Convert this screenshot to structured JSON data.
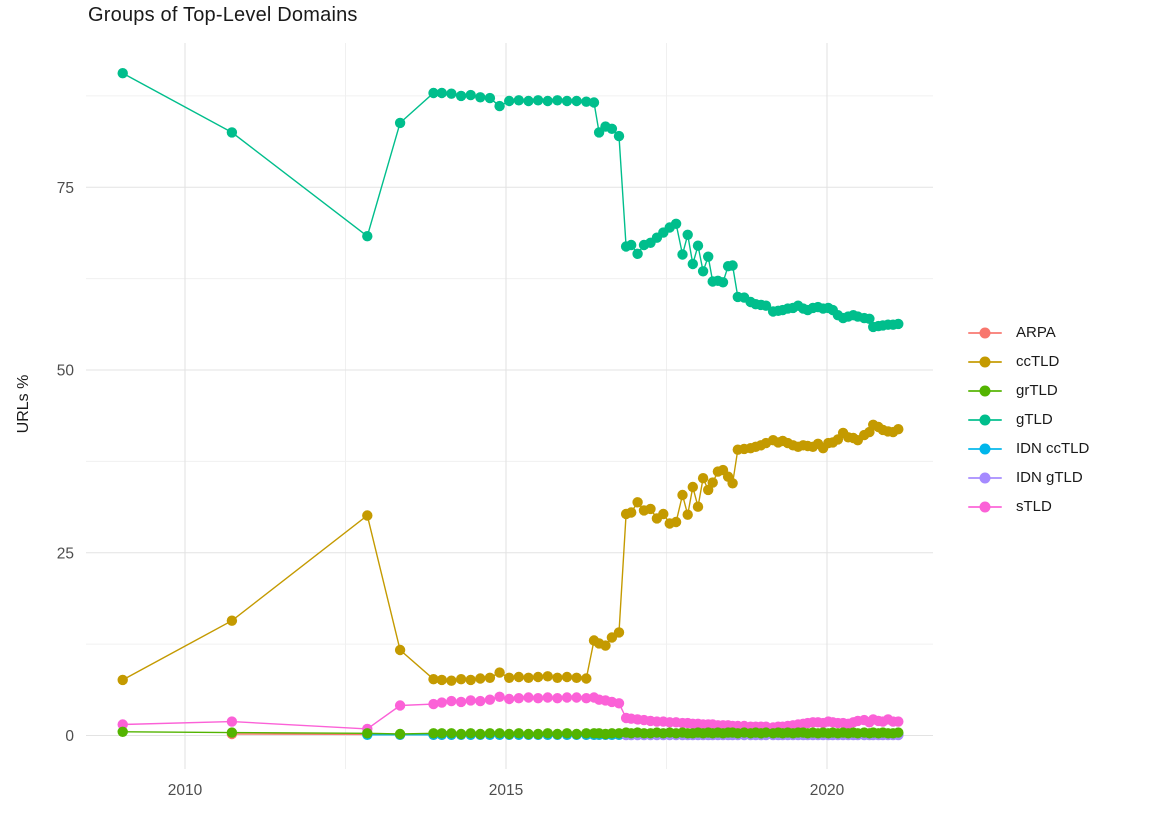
{
  "chart_data": {
    "type": "line",
    "title": "Groups of Top-Level Domains",
    "xlabel": "",
    "ylabel": "URLs %",
    "grid": true,
    "legend_position": "right-center",
    "axis_text_color": "#4d4d4d",
    "major_grid_color": "#e3e3e3",
    "minor_grid_color": "#f0f0f0",
    "x_ticks": [
      2010,
      2015,
      2020
    ],
    "x_tick_labels": [
      "2010",
      "2015",
      "2020"
    ],
    "x_minor_ticks": [
      2012.5,
      2017.5
    ],
    "y_ticks": [
      0,
      25,
      50,
      75
    ],
    "y_tick_labels": [
      "0",
      "25",
      "50",
      "75"
    ],
    "y_minor_ticks": [
      12.5,
      37.5,
      62.5,
      87.5
    ],
    "xlim": [
      2008.45,
      2021.8
    ],
    "ylim": [
      -4.6,
      95.1
    ],
    "x": [
      2009.03,
      2010.73,
      2012.84,
      2013.35,
      2013.87,
      2014.0,
      2014.15,
      2014.3,
      2014.45,
      2014.6,
      2014.75,
      2014.9,
      2015.05,
      2015.2,
      2015.35,
      2015.5,
      2015.65,
      2015.8,
      2015.95,
      2016.1,
      2016.25,
      2016.37,
      2016.45,
      2016.55,
      2016.65,
      2016.76,
      2016.87,
      2016.95,
      2017.05,
      2017.15,
      2017.25,
      2017.35,
      2017.45,
      2017.55,
      2017.65,
      2017.75,
      2017.83,
      2017.91,
      2017.99,
      2018.07,
      2018.15,
      2018.22,
      2018.3,
      2018.38,
      2018.46,
      2018.53,
      2018.61,
      2018.71,
      2018.81,
      2018.89,
      2018.97,
      2019.05,
      2019.16,
      2019.24,
      2019.31,
      2019.39,
      2019.47,
      2019.55,
      2019.63,
      2019.7,
      2019.78,
      2019.86,
      2019.94,
      2020.02,
      2020.09,
      2020.17,
      2020.25,
      2020.33,
      2020.41,
      2020.48,
      2020.58,
      2020.66,
      2020.72,
      2020.8,
      2020.87,
      2020.95,
      2021.03,
      2021.11
    ],
    "series": [
      {
        "name": "ARPA",
        "color": "#F8766D",
        "values": [
          null,
          0.2,
          0.15,
          0.1,
          0.1,
          0.1,
          0.1,
          0.1,
          0.1,
          0.1,
          0.1,
          0.1,
          0.1,
          0.1,
          0.1,
          0.1,
          0.1,
          0.1,
          0.1,
          0.1,
          0.1,
          0.1,
          0.1,
          0.1,
          0.1,
          0.1,
          0.1,
          0.1,
          0.1,
          0.1,
          0.1,
          0.1,
          0.1,
          0.1,
          0.1,
          0.1,
          0.1,
          0.1,
          0.1,
          0.1,
          0.1,
          0.1,
          0.1,
          0.1,
          0.1,
          0.1,
          0.1,
          0.1,
          0.1,
          0.1,
          0.1,
          0.1,
          0.1,
          0.1,
          0.1,
          0.1,
          0.1,
          0.1,
          0.1,
          0.1,
          0.1,
          0.1,
          0.1,
          0.1,
          0.1,
          0.1,
          0.1,
          0.1,
          0.1,
          0.1,
          0.1,
          0.1,
          0.1,
          0.1,
          0.1,
          0.1,
          0.1,
          0.1
        ]
      },
      {
        "name": "ccTLD",
        "color": "#C49A00",
        "values": [
          7.6,
          15.7,
          30.1,
          11.7,
          7.7,
          7.6,
          7.5,
          7.7,
          7.6,
          7.8,
          7.9,
          8.6,
          7.9,
          8.0,
          7.9,
          8.0,
          8.1,
          7.9,
          8.0,
          7.9,
          7.8,
          13.0,
          12.6,
          12.3,
          13.4,
          14.1,
          30.3,
          30.5,
          31.9,
          30.8,
          31.0,
          29.7,
          30.3,
          29.0,
          29.2,
          32.9,
          30.2,
          34.0,
          31.3,
          35.2,
          33.6,
          34.6,
          36.1,
          36.3,
          35.4,
          34.5,
          39.1,
          39.2,
          39.3,
          39.5,
          39.7,
          40.0,
          40.4,
          40.1,
          40.3,
          40.0,
          39.7,
          39.5,
          39.7,
          39.6,
          39.5,
          39.9,
          39.3,
          40.0,
          40.1,
          40.5,
          41.4,
          40.8,
          40.7,
          40.4,
          41.1,
          41.5,
          42.5,
          42.2,
          41.8,
          41.6,
          41.5,
          41.9
        ]
      },
      {
        "name": "grTLD",
        "color": "#53B400",
        "values": [
          0.5,
          0.4,
          0.3,
          0.2,
          0.3,
          0.3,
          0.3,
          0.2,
          0.3,
          0.2,
          0.3,
          0.3,
          0.2,
          0.3,
          0.2,
          0.2,
          0.3,
          0.2,
          0.3,
          0.2,
          0.3,
          0.3,
          0.3,
          0.2,
          0.3,
          0.3,
          0.4,
          0.3,
          0.4,
          0.3,
          0.3,
          0.4,
          0.3,
          0.4,
          0.3,
          0.4,
          0.3,
          0.3,
          0.4,
          0.3,
          0.4,
          0.3,
          0.4,
          0.3,
          0.4,
          0.4,
          0.3,
          0.4,
          0.3,
          0.4,
          0.3,
          0.4,
          0.3,
          0.4,
          0.3,
          0.4,
          0.3,
          0.4,
          0.4,
          0.3,
          0.4,
          0.3,
          0.4,
          0.3,
          0.4,
          0.3,
          0.4,
          0.3,
          0.4,
          0.3,
          0.4,
          0.3,
          0.4,
          0.3,
          0.4,
          0.3,
          0.3,
          0.4
        ]
      },
      {
        "name": "gTLD",
        "color": "#00BE8C",
        "values": [
          90.6,
          82.5,
          68.3,
          83.8,
          87.9,
          87.9,
          87.8,
          87.5,
          87.6,
          87.3,
          87.2,
          86.1,
          86.8,
          86.9,
          86.8,
          86.9,
          86.8,
          86.9,
          86.8,
          86.8,
          86.7,
          86.6,
          82.5,
          83.3,
          83.0,
          82.0,
          66.9,
          67.1,
          65.9,
          67.1,
          67.4,
          68.1,
          68.8,
          69.5,
          70.0,
          65.8,
          68.5,
          64.5,
          67.0,
          63.5,
          65.5,
          62.1,
          62.2,
          62.0,
          64.2,
          64.3,
          60.0,
          59.9,
          59.3,
          59.0,
          58.9,
          58.8,
          58.0,
          58.1,
          58.2,
          58.4,
          58.5,
          58.8,
          58.4,
          58.2,
          58.5,
          58.6,
          58.4,
          58.5,
          58.2,
          57.5,
          57.1,
          57.3,
          57.5,
          57.3,
          57.1,
          57.0,
          55.9,
          56.0,
          56.1,
          56.2,
          56.2,
          56.3
        ]
      },
      {
        "name": "IDN ccTLD",
        "color": "#00B6EB",
        "values": [
          null,
          null,
          0.1,
          0.1,
          0.1,
          0.1,
          0.1,
          0.1,
          0.1,
          0.1,
          0.1,
          0.1,
          0.1,
          0.1,
          0.1,
          0.1,
          0.1,
          0.1,
          0.1,
          0.1,
          0.1,
          0.1,
          0.1,
          0.1,
          0.1,
          0.1,
          0.2,
          0.2,
          0.2,
          0.2,
          0.2,
          0.2,
          0.2,
          0.2,
          0.2,
          0.2,
          0.2,
          0.2,
          0.2,
          0.2,
          0.2,
          0.2,
          0.2,
          0.2,
          0.2,
          0.2,
          0.2,
          0.2,
          0.2,
          0.2,
          0.2,
          0.2,
          0.2,
          0.2,
          0.2,
          0.2,
          0.2,
          0.2,
          0.2,
          0.2,
          0.2,
          0.2,
          0.2,
          0.2,
          0.2,
          0.2,
          0.2,
          0.2,
          0.2,
          0.2,
          0.2,
          0.2,
          0.2,
          0.2,
          0.2,
          0.2,
          0.2,
          0.2
        ]
      },
      {
        "name": "IDN gTLD",
        "color": "#A58AFF",
        "values": [
          null,
          null,
          null,
          null,
          null,
          null,
          null,
          null,
          null,
          null,
          null,
          null,
          null,
          null,
          null,
          null,
          null,
          null,
          null,
          null,
          null,
          null,
          null,
          null,
          null,
          null,
          0.05,
          0.05,
          0.05,
          0.05,
          0.05,
          0.05,
          0.05,
          0.05,
          0.05,
          0.05,
          0.05,
          0.05,
          0.05,
          0.05,
          0.05,
          0.05,
          0.05,
          0.05,
          0.05,
          0.05,
          0.05,
          0.05,
          0.05,
          0.05,
          0.05,
          0.05,
          0.05,
          0.05,
          0.05,
          0.05,
          0.05,
          0.05,
          0.05,
          0.05,
          0.05,
          0.05,
          0.05,
          0.05,
          0.05,
          0.05,
          0.05,
          0.05,
          0.05,
          0.05,
          0.05,
          0.05,
          0.05,
          0.05,
          0.05,
          0.05,
          0.05,
          0.05
        ]
      },
      {
        "name": "sTLD",
        "color": "#FB61D7",
        "values": [
          1.5,
          1.9,
          0.9,
          4.1,
          4.3,
          4.5,
          4.7,
          4.6,
          4.8,
          4.7,
          4.9,
          5.3,
          5.0,
          5.1,
          5.2,
          5.1,
          5.2,
          5.1,
          5.2,
          5.2,
          5.1,
          5.2,
          4.9,
          4.8,
          4.6,
          4.4,
          2.4,
          2.3,
          2.2,
          2.1,
          2.0,
          1.9,
          1.9,
          1.8,
          1.8,
          1.7,
          1.7,
          1.6,
          1.6,
          1.5,
          1.5,
          1.5,
          1.4,
          1.4,
          1.4,
          1.3,
          1.3,
          1.3,
          1.2,
          1.2,
          1.2,
          1.2,
          1.1,
          1.2,
          1.2,
          1.3,
          1.4,
          1.5,
          1.6,
          1.7,
          1.8,
          1.8,
          1.7,
          1.9,
          1.8,
          1.7,
          1.7,
          1.6,
          1.8,
          2.0,
          2.1,
          1.8,
          2.2,
          2.0,
          1.9,
          2.2,
          1.9,
          1.9
        ]
      }
    ]
  }
}
